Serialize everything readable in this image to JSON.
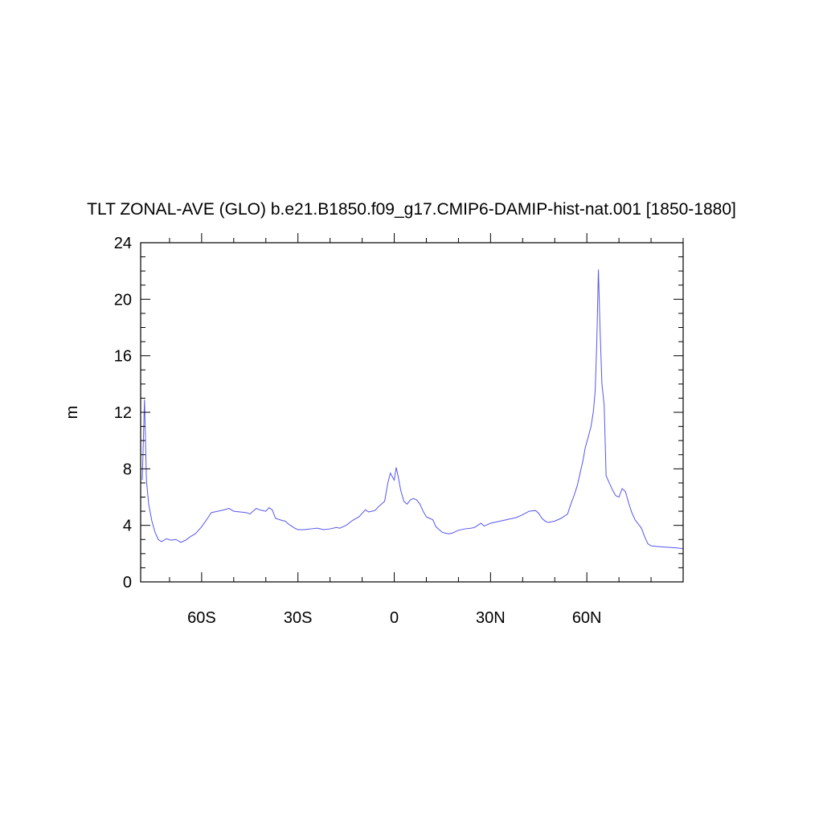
{
  "chart_data": {
    "type": "line",
    "title": "TLT ZONAL-AVE (GLO) b.e21.B1850.f09_g17.CMIP6-DAMIP-hist-nat.001 [1850-1880]",
    "xlabel": "",
    "ylabel": "m",
    "xlim": [
      -79,
      90
    ],
    "ylim": [
      0,
      24
    ],
    "x_ticks": [
      -60,
      -30,
      0,
      30,
      60
    ],
    "x_tick_labels": [
      "60S",
      "30S",
      "0",
      "30N",
      "60N"
    ],
    "y_ticks": [
      0,
      4,
      8,
      12,
      16,
      20,
      24
    ],
    "y_tick_labels": [
      "0",
      "4",
      "8",
      "12",
      "16",
      "20",
      "24"
    ],
    "grid": false,
    "colors": {
      "line": "#5555ee",
      "axis": "#000000"
    },
    "series": [
      {
        "x": [
          -78.5,
          -77.8,
          -77.2,
          -76.5,
          -75.5,
          -74.5,
          -73.5,
          -72.5,
          -71,
          -69.5,
          -68,
          -66.5,
          -65,
          -63.5,
          -62,
          -60,
          -58,
          -57,
          -56,
          -55,
          -54,
          -53,
          -51.5,
          -50,
          -48,
          -46,
          -45,
          -44,
          -43,
          -42,
          -41,
          -40,
          -39,
          -38,
          -37,
          -35,
          -34,
          -33,
          -32,
          -31,
          -30,
          -28,
          -26,
          -24,
          -22,
          -20,
          -18,
          -17,
          -15,
          -13,
          -11,
          -10,
          -9,
          -8,
          -7,
          -6,
          -5,
          -4,
          -3,
          -2,
          -1.2,
          -0.5,
          0,
          0.6,
          1.2,
          2,
          3,
          4,
          5,
          6,
          7,
          8,
          9,
          10,
          11,
          12,
          13,
          14,
          15,
          16,
          17,
          18,
          19,
          20,
          22,
          24,
          25,
          26,
          27,
          28,
          29,
          30,
          32,
          34,
          36,
          38,
          40,
          42,
          44,
          45,
          46,
          47,
          48,
          50,
          52,
          54,
          55,
          56,
          57,
          58,
          58.8,
          59.5,
          60.5,
          61.3,
          62,
          62.6,
          63.1,
          63.6,
          64.1,
          64.7,
          65.4,
          66,
          67,
          68,
          69,
          70,
          71,
          72,
          73,
          74,
          75,
          76,
          77,
          78,
          79,
          80,
          82,
          85,
          88,
          90
        ],
        "y": [
          7.2,
          12.9,
          7.2,
          5.5,
          4.3,
          3.5,
          3.0,
          2.85,
          3.05,
          2.95,
          3.0,
          2.8,
          2.95,
          3.2,
          3.4,
          3.9,
          4.55,
          4.9,
          4.95,
          5.0,
          5.05,
          5.1,
          5.2,
          5.0,
          4.95,
          4.9,
          4.8,
          5.0,
          5.2,
          5.1,
          5.05,
          5.0,
          5.25,
          5.1,
          4.5,
          4.35,
          4.3,
          4.1,
          3.95,
          3.8,
          3.7,
          3.7,
          3.75,
          3.8,
          3.7,
          3.75,
          3.85,
          3.8,
          4.0,
          4.35,
          4.6,
          4.85,
          5.1,
          4.95,
          5.0,
          5.05,
          5.3,
          5.5,
          5.7,
          7.0,
          7.7,
          7.4,
          7.2,
          8.1,
          7.5,
          6.5,
          5.7,
          5.5,
          5.8,
          5.9,
          5.8,
          5.5,
          5.0,
          4.6,
          4.5,
          4.4,
          3.9,
          3.7,
          3.5,
          3.45,
          3.4,
          3.45,
          3.55,
          3.65,
          3.75,
          3.8,
          3.85,
          4.0,
          4.15,
          3.95,
          4.05,
          4.15,
          4.25,
          4.35,
          4.45,
          4.55,
          4.75,
          5.0,
          5.05,
          4.85,
          4.5,
          4.3,
          4.2,
          4.3,
          4.5,
          4.8,
          5.5,
          6.1,
          6.8,
          7.8,
          8.6,
          9.5,
          10.3,
          11.0,
          12.0,
          13.5,
          17.0,
          22.1,
          18.0,
          14.0,
          12.5,
          7.5,
          7.0,
          6.5,
          6.1,
          6.0,
          6.6,
          6.4,
          5.6,
          4.9,
          4.4,
          4.1,
          3.8,
          3.2,
          2.7,
          2.55,
          2.5,
          2.45,
          2.4,
          2.35
        ]
      }
    ]
  }
}
